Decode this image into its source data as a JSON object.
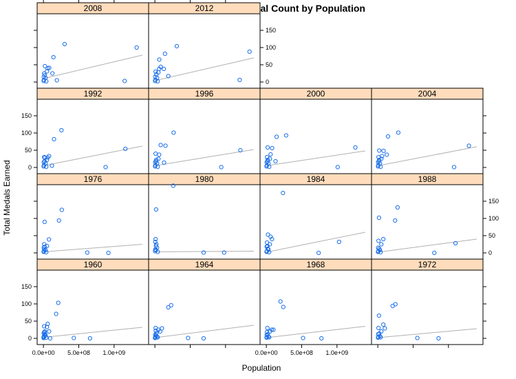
{
  "chart_data": {
    "type": "scatter",
    "title": "Summer Olympics: Medal Count by Population",
    "xlabel": "Population",
    "ylabel": "Total Medals Earned",
    "xlim": [
      -50000000,
      1450000000
    ],
    "ylim": [
      -10,
      190
    ],
    "x_ticks": [
      0,
      500000000,
      1000000000
    ],
    "x_tick_labels": [
      "0.0e+00",
      "5.0e+08",
      "1.0e+09"
    ],
    "y_ticks": [
      0,
      50,
      100,
      150
    ],
    "y_tick_labels": [
      "0",
      "50",
      "100",
      "150"
    ],
    "grid": false,
    "point_color": "#1a6fe8",
    "line_color": "#b0b0b0",
    "strip_color": "#ffdcbc",
    "panels": [
      {
        "year": "1960",
        "row": 0,
        "col": 0,
        "trend": [
          [
            0,
            3
          ],
          [
            1400000000,
            32
          ]
        ],
        "points": [
          [
            180000000,
            71
          ],
          [
            210000000,
            103
          ],
          [
            60000000,
            42
          ],
          [
            50000000,
            33
          ],
          [
            10000000,
            35
          ],
          [
            20000000,
            20
          ],
          [
            5000000,
            15
          ],
          [
            80000000,
            20
          ],
          [
            30000000,
            8
          ],
          [
            660000000,
            0
          ],
          [
            430000000,
            1
          ],
          [
            95000000,
            0
          ],
          [
            15000000,
            10
          ],
          [
            8000000,
            5
          ],
          [
            3000000,
            3
          ],
          [
            40000000,
            2
          ],
          [
            25000000,
            12
          ],
          [
            12000000,
            18
          ],
          [
            2000000,
            1
          ],
          [
            7000000,
            6
          ]
        ]
      },
      {
        "year": "1964",
        "row": 0,
        "col": 1,
        "trend": [
          [
            0,
            2
          ],
          [
            1400000000,
            38
          ]
        ],
        "points": [
          [
            190000000,
            90
          ],
          [
            230000000,
            96
          ],
          [
            75000000,
            20
          ],
          [
            50000000,
            25
          ],
          [
            10000000,
            30
          ],
          [
            20000000,
            15
          ],
          [
            100000000,
            29
          ],
          [
            5000000,
            10
          ],
          [
            690000000,
            0
          ],
          [
            470000000,
            1
          ],
          [
            30000000,
            5
          ],
          [
            15000000,
            8
          ],
          [
            8000000,
            4
          ],
          [
            3000000,
            2
          ],
          [
            40000000,
            3
          ],
          [
            2000000,
            1
          ],
          [
            12000000,
            22
          ]
        ]
      },
      {
        "year": "1968",
        "row": 0,
        "col": 2,
        "trend": [
          [
            0,
            2
          ],
          [
            1400000000,
            35
          ]
        ],
        "points": [
          [
            200000000,
            107
          ],
          [
            240000000,
            91
          ],
          [
            76000000,
            25
          ],
          [
            15000000,
            30
          ],
          [
            50000000,
            20
          ],
          [
            10000000,
            18
          ],
          [
            100000000,
            25
          ],
          [
            5000000,
            10
          ],
          [
            520000000,
            1
          ],
          [
            780000000,
            0
          ],
          [
            30000000,
            5
          ],
          [
            8000000,
            4
          ],
          [
            3000000,
            2
          ],
          [
            40000000,
            3
          ],
          [
            20000000,
            12
          ]
        ]
      },
      {
        "year": "1972",
        "row": 0,
        "col": 3,
        "trend": [
          [
            0,
            2
          ],
          [
            1400000000,
            28
          ]
        ],
        "points": [
          [
            210000000,
            94
          ],
          [
            250000000,
            99
          ],
          [
            78000000,
            40
          ],
          [
            17000000,
            66
          ],
          [
            10000000,
            30
          ],
          [
            50000000,
            20
          ],
          [
            100000000,
            29
          ],
          [
            5000000,
            12
          ],
          [
            560000000,
            1
          ],
          [
            860000000,
            0
          ],
          [
            30000000,
            6
          ],
          [
            8000000,
            4
          ],
          [
            3000000,
            2
          ],
          [
            40000000,
            3
          ],
          [
            20000000,
            14
          ]
        ]
      },
      {
        "year": "1976",
        "row": 1,
        "col": 0,
        "trend": [
          [
            0,
            3
          ],
          [
            1400000000,
            25
          ]
        ],
        "points": [
          [
            220000000,
            94
          ],
          [
            260000000,
            125
          ],
          [
            17000000,
            90
          ],
          [
            78000000,
            39
          ],
          [
            10000000,
            25
          ],
          [
            50000000,
            20
          ],
          [
            5000000,
            15
          ],
          [
            620000000,
            1
          ],
          [
            920000000,
            0
          ],
          [
            30000000,
            8
          ],
          [
            8000000,
            5
          ],
          [
            3000000,
            3
          ],
          [
            40000000,
            2
          ],
          [
            20000000,
            18
          ],
          [
            12000000,
            10
          ]
        ]
      },
      {
        "year": "1980",
        "row": 1,
        "col": 1,
        "trend": [
          [
            0,
            3
          ],
          [
            1400000000,
            5
          ]
        ],
        "points": [
          [
            260000000,
            195
          ],
          [
            17000000,
            126
          ],
          [
            10000000,
            40
          ],
          [
            5000000,
            32
          ],
          [
            20000000,
            25
          ],
          [
            30000000,
            15
          ],
          [
            8000000,
            10
          ],
          [
            3000000,
            5
          ],
          [
            40000000,
            3
          ],
          [
            690000000,
            1
          ],
          [
            980000000,
            1
          ],
          [
            15000000,
            20
          ],
          [
            12000000,
            8
          ]
        ]
      },
      {
        "year": "1984",
        "row": 1,
        "col": 2,
        "trend": [
          [
            0,
            2
          ],
          [
            1400000000,
            60
          ]
        ],
        "points": [
          [
            235000000,
            174
          ],
          [
            1030000000,
            32
          ],
          [
            23000000,
            53
          ],
          [
            60000000,
            47
          ],
          [
            80000000,
            40
          ],
          [
            10000000,
            30
          ],
          [
            50000000,
            25
          ],
          [
            5000000,
            18
          ],
          [
            740000000,
            0
          ],
          [
            30000000,
            10
          ],
          [
            8000000,
            5
          ],
          [
            3000000,
            3
          ],
          [
            40000000,
            2
          ],
          [
            20000000,
            12
          ],
          [
            15000000,
            20
          ]
        ]
      },
      {
        "year": "1988",
        "row": 1,
        "col": 3,
        "trend": [
          [
            0,
            2
          ],
          [
            1400000000,
            40
          ]
        ],
        "points": [
          [
            245000000,
            94
          ],
          [
            280000000,
            132
          ],
          [
            17000000,
            102
          ],
          [
            78000000,
            40
          ],
          [
            1100000000,
            28
          ],
          [
            10000000,
            35
          ],
          [
            50000000,
            25
          ],
          [
            5000000,
            15
          ],
          [
            800000000,
            0
          ],
          [
            30000000,
            8
          ],
          [
            8000000,
            5
          ],
          [
            3000000,
            3
          ],
          [
            40000000,
            2
          ],
          [
            20000000,
            12
          ]
        ]
      },
      {
        "year": "1992",
        "row": 2,
        "col": 0,
        "trend": [
          [
            0,
            5
          ],
          [
            1400000000,
            62
          ]
        ],
        "points": [
          [
            255000000,
            108
          ],
          [
            150000000,
            82
          ],
          [
            1160000000,
            54
          ],
          [
            80000000,
            33
          ],
          [
            60000000,
            29
          ],
          [
            50000000,
            22
          ],
          [
            10000000,
            30
          ],
          [
            20000000,
            28
          ],
          [
            5000000,
            15
          ],
          [
            880000000,
            1
          ],
          [
            30000000,
            12
          ],
          [
            8000000,
            6
          ],
          [
            3000000,
            3
          ],
          [
            40000000,
            2
          ],
          [
            15000000,
            18
          ],
          [
            120000000,
            5
          ]
        ]
      },
      {
        "year": "1996",
        "row": 2,
        "col": 1,
        "trend": [
          [
            0,
            5
          ],
          [
            1400000000,
            52
          ]
        ],
        "points": [
          [
            265000000,
            101
          ],
          [
            150000000,
            63
          ],
          [
            1210000000,
            50
          ],
          [
            82000000,
            65
          ],
          [
            60000000,
            37
          ],
          [
            50000000,
            25
          ],
          [
            10000000,
            40
          ],
          [
            20000000,
            22
          ],
          [
            5000000,
            15
          ],
          [
            940000000,
            1
          ],
          [
            30000000,
            12
          ],
          [
            8000000,
            6
          ],
          [
            3000000,
            3
          ],
          [
            40000000,
            2
          ],
          [
            15000000,
            18
          ],
          [
            130000000,
            14
          ]
        ]
      },
      {
        "year": "2000",
        "row": 2,
        "col": 2,
        "trend": [
          [
            0,
            5
          ],
          [
            1400000000,
            48
          ]
        ],
        "points": [
          [
            280000000,
            93
          ],
          [
            145000000,
            89
          ],
          [
            1260000000,
            58
          ],
          [
            19000000,
            58
          ],
          [
            82000000,
            56
          ],
          [
            60000000,
            38
          ],
          [
            50000000,
            25
          ],
          [
            10000000,
            30
          ],
          [
            20000000,
            22
          ],
          [
            5000000,
            15
          ],
          [
            1010000000,
            1
          ],
          [
            30000000,
            12
          ],
          [
            8000000,
            6
          ],
          [
            3000000,
            3
          ],
          [
            40000000,
            2
          ],
          [
            15000000,
            18
          ],
          [
            130000000,
            18
          ]
        ]
      },
      {
        "year": "2004",
        "row": 2,
        "col": 3,
        "trend": [
          [
            0,
            5
          ],
          [
            1400000000,
            60
          ]
        ],
        "points": [
          [
            290000000,
            101
          ],
          [
            145000000,
            90
          ],
          [
            1290000000,
            63
          ],
          [
            20000000,
            49
          ],
          [
            82000000,
            48
          ],
          [
            60000000,
            33
          ],
          [
            50000000,
            25
          ],
          [
            10000000,
            30
          ],
          [
            20000000,
            22
          ],
          [
            5000000,
            15
          ],
          [
            1080000000,
            1
          ],
          [
            30000000,
            12
          ],
          [
            8000000,
            6
          ],
          [
            3000000,
            3
          ],
          [
            40000000,
            2
          ],
          [
            15000000,
            18
          ],
          [
            127000000,
            37
          ]
        ]
      },
      {
        "year": "2008",
        "row": 3,
        "col": 0,
        "trend": [
          [
            0,
            10
          ],
          [
            1400000000,
            78
          ]
        ],
        "points": [
          [
            300000000,
            110
          ],
          [
            1320000000,
            100
          ],
          [
            142000000,
            72
          ],
          [
            21000000,
            46
          ],
          [
            82000000,
            41
          ],
          [
            60000000,
            40
          ],
          [
            50000000,
            31
          ],
          [
            10000000,
            25
          ],
          [
            20000000,
            20
          ],
          [
            5000000,
            15
          ],
          [
            1150000000,
            3
          ],
          [
            30000000,
            12
          ],
          [
            8000000,
            6
          ],
          [
            3000000,
            3
          ],
          [
            40000000,
            2
          ],
          [
            127000000,
            25
          ],
          [
            190000000,
            5
          ]
        ]
      },
      {
        "year": "2012",
        "row": 3,
        "col": 1,
        "trend": [
          [
            0,
            4
          ],
          [
            1400000000,
            70
          ]
        ],
        "points": [
          [
            310000000,
            104
          ],
          [
            1340000000,
            88
          ],
          [
            143000000,
            82
          ],
          [
            62000000,
            65
          ],
          [
            82000000,
            44
          ],
          [
            60000000,
            38
          ],
          [
            50000000,
            28
          ],
          [
            10000000,
            30
          ],
          [
            20000000,
            22
          ],
          [
            5000000,
            15
          ],
          [
            1200000000,
            6
          ],
          [
            30000000,
            12
          ],
          [
            8000000,
            6
          ],
          [
            3000000,
            3
          ],
          [
            40000000,
            2
          ],
          [
            127000000,
            38
          ],
          [
            190000000,
            17
          ]
        ]
      }
    ]
  }
}
